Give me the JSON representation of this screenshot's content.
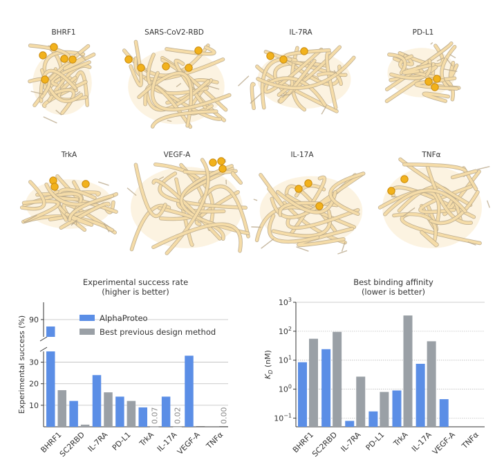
{
  "colors": {
    "alphaproteo": "#5b8ee6",
    "previous": "#9aa0a6",
    "ribbon_fill": "#f5dca8",
    "ribbon_edge": "#b9a889",
    "sphere": "#f2b21c",
    "sphere_edge": "#c8890c",
    "grid": "#bbbbbb",
    "label_gray": "#888888"
  },
  "proteins": [
    {
      "name": "BHRF1",
      "icon": "protein-ribbon"
    },
    {
      "name": "SARS-CoV2-RBD",
      "icon": "protein-ribbon"
    },
    {
      "name": "IL-7RA",
      "icon": "protein-ribbon"
    },
    {
      "name": "PD-L1",
      "icon": "protein-ribbon"
    },
    {
      "name": "TrkA",
      "icon": "protein-ribbon"
    },
    {
      "name": "VEGF-A",
      "icon": "protein-ribbon"
    },
    {
      "name": "IL-17A",
      "icon": "protein-ribbon"
    },
    {
      "name": "TNFα",
      "icon": "protein-ribbon"
    }
  ],
  "chart_data": [
    {
      "type": "bar",
      "title": "Experimental success rate",
      "subtitle": "(higher is better)",
      "ylabel": "Experimental success (%)",
      "categories": [
        "BHRF1",
        "SC2RBD",
        "IL-7RA",
        "PD-L1",
        "TrkA",
        "IL-17A",
        "VEGF-A",
        "TNFα"
      ],
      "broken_axis": true,
      "lower_ylim": [
        0,
        35
      ],
      "upper_ylim": [
        85,
        95
      ],
      "yticks_lower": [
        10,
        20,
        30
      ],
      "yticks_upper": [
        90
      ],
      "series": [
        {
          "name": "AlphaProteo",
          "values": [
            88,
            12,
            24,
            14,
            9,
            14,
            33,
            0
          ]
        },
        {
          "name": "Best previous design method",
          "values": [
            17,
            1,
            16,
            12,
            0.07,
            0.02,
            0,
            0
          ]
        }
      ],
      "value_labels": [
        {
          "category": "TrkA",
          "text": "0.07"
        },
        {
          "category": "IL-17A",
          "text": "0.02"
        },
        {
          "category": "TNFα",
          "text": "0.00"
        }
      ],
      "grid": true,
      "legend": "top-right"
    },
    {
      "type": "bar",
      "title": "Best binding affinity",
      "subtitle": "(lower is better)",
      "ylabel": "K_D (nM)",
      "categories": [
        "BHRF1",
        "SC2RBD",
        "IL-7RA",
        "PD-L1",
        "TrkA",
        "IL-17A",
        "VEGF-A",
        "TNFα"
      ],
      "yscale": "log",
      "ylim": [
        0.05,
        1000
      ],
      "yticks": [
        {
          "base": "10",
          "exp": "−1",
          "value": 0.1
        },
        {
          "base": "10",
          "exp": "0",
          "value": 1
        },
        {
          "base": "10",
          "exp": "1",
          "value": 10
        },
        {
          "base": "10",
          "exp": "2",
          "value": 100
        },
        {
          "base": "10",
          "exp": "3",
          "value": 1000
        }
      ],
      "series": [
        {
          "name": "AlphaProteo",
          "values": [
            8.5,
            24,
            0.08,
            0.17,
            0.9,
            7.5,
            0.45,
            null
          ]
        },
        {
          "name": "Best previous design method",
          "values": [
            55,
            95,
            2.7,
            0.8,
            350,
            45,
            null,
            null
          ]
        }
      ],
      "grid": true
    }
  ]
}
